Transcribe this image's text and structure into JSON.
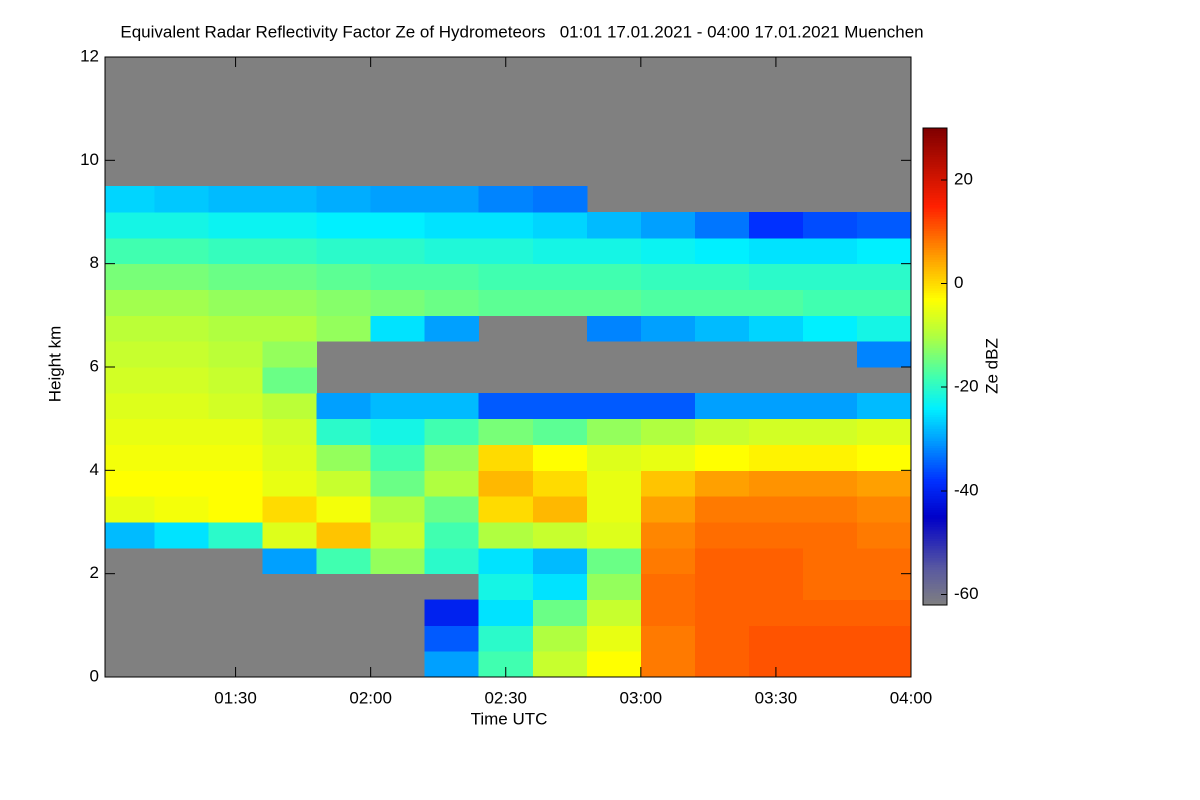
{
  "chart_data": {
    "type": "heatmap",
    "title": "Equivalent Radar Reflectivity Factor Ze of Hydrometeors   01:01 17.01.2021 - 04:00 17.01.2021 Muenchen",
    "x_label": "Time UTC",
    "y_label": "Height km",
    "colorbar_label": "Ze dBZ",
    "xlim": [
      1.0167,
      4.0
    ],
    "xticks": [
      {
        "value": 1.5,
        "label": "01:30"
      },
      {
        "value": 2.0,
        "label": "02:00"
      },
      {
        "value": 2.5,
        "label": "02:30"
      },
      {
        "value": 3.0,
        "label": "03:00"
      },
      {
        "value": 3.5,
        "label": "03:30"
      },
      {
        "value": 4.0,
        "label": "04:00"
      }
    ],
    "ylim": [
      0,
      12
    ],
    "yticks": [
      0,
      2,
      4,
      6,
      8,
      10,
      12
    ],
    "clim": [
      -62,
      30
    ],
    "cticks": [
      -60,
      -40,
      -20,
      0,
      20
    ],
    "missing_color": "#808080",
    "colorscale": [
      [
        -62,
        "#808080"
      ],
      [
        -55,
        "#5a5aa0"
      ],
      [
        -45,
        "#0000c8"
      ],
      [
        -38,
        "#0030ff"
      ],
      [
        -30,
        "#00a0ff"
      ],
      [
        -24,
        "#00f0ff"
      ],
      [
        -18,
        "#40ffb0"
      ],
      [
        -10,
        "#b0ff40"
      ],
      [
        -3,
        "#ffff00"
      ],
      [
        5,
        "#ffa000"
      ],
      [
        15,
        "#ff2000"
      ],
      [
        30,
        "#800000"
      ]
    ],
    "x": [
      1.1,
      1.3,
      1.5,
      1.7,
      1.9,
      2.1,
      2.3,
      2.5,
      2.7,
      2.9,
      3.1,
      3.3,
      3.5,
      3.7,
      3.9
    ],
    "y": [
      0.25,
      0.75,
      1.25,
      1.75,
      2.25,
      2.75,
      3.25,
      3.75,
      4.25,
      4.75,
      5.25,
      5.75,
      6.25,
      6.75,
      7.25,
      7.75,
      8.25,
      8.75,
      9.25,
      9.75,
      10.25,
      10.75,
      11.25,
      11.75
    ],
    "z": [
      [
        null,
        null,
        null,
        null,
        null,
        null,
        -30,
        -18,
        -8,
        -3,
        8,
        10,
        11,
        11,
        11
      ],
      [
        null,
        null,
        null,
        null,
        null,
        null,
        -35,
        -20,
        -10,
        -5,
        8,
        10,
        11,
        11,
        11
      ],
      [
        null,
        null,
        null,
        null,
        null,
        null,
        -40,
        -25,
        -15,
        -8,
        9,
        10,
        10,
        10,
        10
      ],
      [
        null,
        null,
        null,
        null,
        null,
        null,
        null,
        -22,
        -25,
        -12,
        9,
        10,
        10,
        9,
        9
      ],
      [
        null,
        null,
        null,
        -30,
        -18,
        -12,
        -20,
        -25,
        -28,
        -15,
        8,
        10,
        10,
        9,
        9
      ],
      [
        -28,
        -25,
        -20,
        -6,
        2,
        -8,
        -18,
        -10,
        -8,
        -6,
        7,
        9,
        9,
        9,
        8
      ],
      [
        -5,
        -4,
        -3,
        0,
        -4,
        -10,
        -15,
        0,
        3,
        -5,
        5,
        8,
        8,
        8,
        7
      ],
      [
        -3,
        -3,
        -3,
        -5,
        -8,
        -15,
        -10,
        3,
        0,
        -5,
        2,
        5,
        6,
        6,
        5
      ],
      [
        -4,
        -4,
        -4,
        -6,
        -12,
        -18,
        -12,
        0,
        -3,
        -6,
        -5,
        -3,
        -2,
        -2,
        -3
      ],
      [
        -5,
        -5,
        -5,
        -7,
        -20,
        -22,
        -18,
        -14,
        -16,
        -12,
        -10,
        -8,
        -7,
        -7,
        -6
      ],
      [
        -6,
        -6,
        -7,
        -9,
        -30,
        -28,
        -28,
        -35,
        -35,
        -35,
        -35,
        -30,
        -30,
        -30,
        -28
      ],
      [
        -7,
        -7,
        -8,
        -15,
        null,
        null,
        null,
        null,
        null,
        null,
        null,
        null,
        null,
        null,
        null
      ],
      [
        -8,
        -8,
        -9,
        -12,
        null,
        null,
        null,
        null,
        null,
        null,
        null,
        null,
        null,
        null,
        -32
      ],
      [
        -9,
        -9,
        -10,
        -10,
        -12,
        -25,
        -30,
        null,
        null,
        -32,
        -30,
        -28,
        -26,
        -24,
        -22
      ],
      [
        -11,
        -11,
        -12,
        -12,
        -13,
        -14,
        -15,
        -16,
        -16,
        -16,
        -17,
        -17,
        -17,
        -18,
        -18
      ],
      [
        -14,
        -14,
        -15,
        -15,
        -16,
        -17,
        -17,
        -18,
        -18,
        -18,
        -19,
        -19,
        -20,
        -20,
        -20
      ],
      [
        -18,
        -18,
        -19,
        -19,
        -20,
        -20,
        -21,
        -21,
        -22,
        -22,
        -23,
        -24,
        -25,
        -25,
        -24
      ],
      [
        -22,
        -22,
        -23,
        -23,
        -24,
        -24,
        -25,
        -25,
        -26,
        -28,
        -30,
        -33,
        -38,
        -36,
        -35
      ],
      [
        -26,
        -27,
        -28,
        -28,
        -29,
        -30,
        -30,
        -32,
        -33,
        null,
        null,
        null,
        null,
        null,
        null
      ],
      [
        null,
        null,
        null,
        null,
        null,
        null,
        null,
        null,
        null,
        null,
        null,
        null,
        null,
        null,
        null
      ],
      [
        null,
        null,
        null,
        null,
        null,
        null,
        null,
        null,
        null,
        null,
        null,
        null,
        null,
        null,
        null
      ],
      [
        null,
        null,
        null,
        null,
        null,
        null,
        null,
        null,
        null,
        null,
        null,
        null,
        null,
        null,
        null
      ],
      [
        null,
        null,
        null,
        null,
        null,
        null,
        null,
        null,
        null,
        null,
        null,
        null,
        null,
        null,
        null
      ],
      [
        null,
        null,
        null,
        null,
        null,
        null,
        null,
        null,
        null,
        null,
        null,
        null,
        null,
        null,
        null
      ]
    ]
  }
}
